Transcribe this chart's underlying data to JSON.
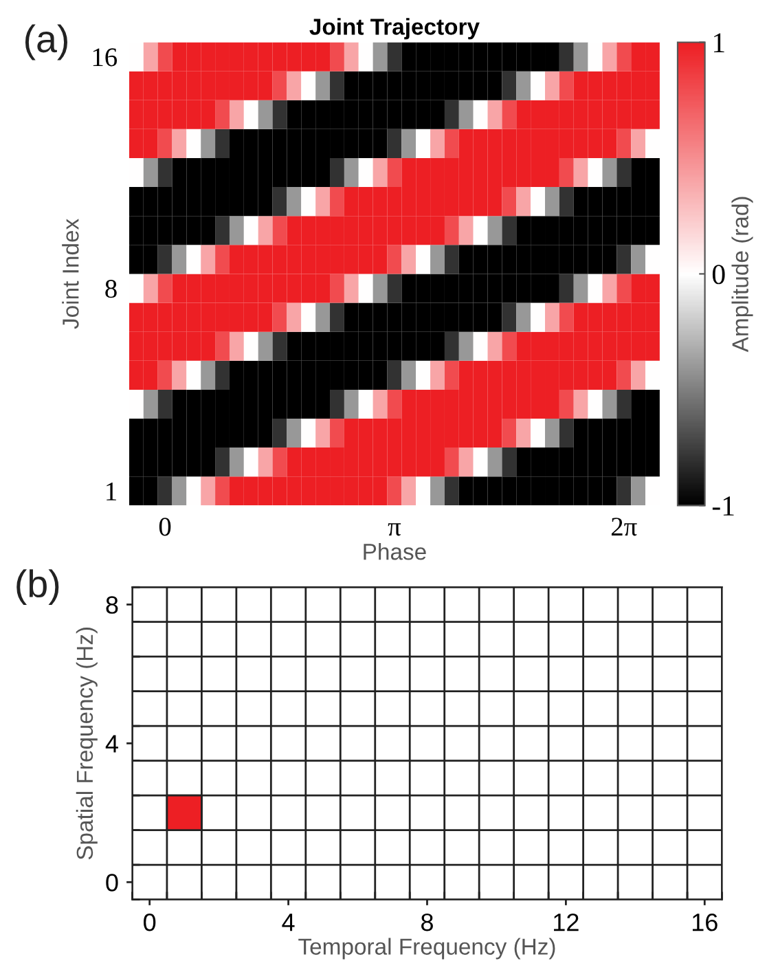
{
  "chart_data": [
    {
      "type": "heatmap",
      "title": "Joint Trajectory",
      "xlabel": "Phase",
      "ylabel": "Joint Index",
      "clabel": "Amplitude (rad)",
      "annotations": [
        "(a)"
      ],
      "categories": [
        null,
        null,
        "0",
        null,
        null,
        null,
        null,
        null,
        null,
        null,
        null,
        null,
        null,
        null,
        null,
        null,
        null,
        null,
        "π",
        null,
        null,
        null,
        null,
        null,
        null,
        null,
        null,
        null,
        null,
        null,
        null,
        null,
        null,
        null,
        "2π",
        null,
        null
      ],
      "y_categories": [
        "16",
        null,
        null,
        null,
        null,
        null,
        null,
        null,
        "8",
        null,
        null,
        null,
        null,
        null,
        null,
        "1"
      ],
      "clim": [
        -1,
        1
      ],
      "cticks": [
        {
          "value": -1,
          "label": "-1"
        },
        0,
        1
      ],
      "cells": [
        [
          0,
          0.4,
          0.8,
          1,
          1,
          1,
          1,
          1,
          1,
          1,
          1,
          1,
          1,
          1,
          0.8,
          0.4,
          0,
          -0.4,
          -0.8,
          -1,
          -1,
          -1,
          -1,
          -1,
          -1,
          -1,
          -1,
          -1,
          -1,
          -1,
          -0.8,
          -0.4,
          0,
          0.4,
          0.8,
          1,
          1
        ],
        [
          1,
          1,
          1,
          1,
          1,
          1,
          1,
          1,
          1,
          1,
          0.8,
          0.4,
          0,
          -0.4,
          -0.8,
          -1,
          -1,
          -1,
          -1,
          -1,
          -1,
          -1,
          -1,
          -1,
          -1,
          -1,
          -0.8,
          -0.4,
          0,
          0.4,
          0.8,
          1,
          1,
          1,
          1,
          1,
          1
        ],
        [
          1,
          1,
          1,
          1,
          1,
          1,
          0.8,
          0.4,
          0,
          -0.4,
          -0.8,
          -1,
          -1,
          -1,
          -1,
          -1,
          -1,
          -1,
          -1,
          -1,
          -1,
          -1,
          -0.8,
          -0.4,
          0,
          0.4,
          0.8,
          1,
          1,
          1,
          1,
          1,
          1,
          1,
          1,
          1,
          1
        ],
        [
          1,
          1,
          0.8,
          0.4,
          0,
          -0.4,
          -0.8,
          -1,
          -1,
          -1,
          -1,
          -1,
          -1,
          -1,
          -1,
          -1,
          -1,
          -1,
          -0.8,
          -0.4,
          0,
          0.4,
          0.8,
          1,
          1,
          1,
          1,
          1,
          1,
          1,
          1,
          1,
          1,
          1,
          0.8,
          0.4,
          0
        ],
        [
          0,
          -0.4,
          -0.8,
          -1,
          -1,
          -1,
          -1,
          -1,
          -1,
          -1,
          -1,
          -1,
          -1,
          -1,
          -0.8,
          -0.4,
          0,
          0.4,
          0.8,
          1,
          1,
          1,
          1,
          1,
          1,
          1,
          1,
          1,
          1,
          1,
          0.8,
          0.4,
          0,
          -0.4,
          -0.8,
          -1,
          -1
        ],
        [
          -1,
          -1,
          -1,
          -1,
          -1,
          -1,
          -1,
          -1,
          -1,
          -1,
          -0.8,
          -0.4,
          0,
          0.4,
          0.8,
          1,
          1,
          1,
          1,
          1,
          1,
          1,
          1,
          1,
          1,
          1,
          0.8,
          0.4,
          0,
          -0.4,
          -0.8,
          -1,
          -1,
          -1,
          -1,
          -1,
          -1
        ],
        [
          -1,
          -1,
          -1,
          -1,
          -1,
          -1,
          -0.8,
          -0.4,
          0,
          0.4,
          0.8,
          1,
          1,
          1,
          1,
          1,
          1,
          1,
          1,
          1,
          1,
          1,
          0.8,
          0.4,
          0,
          -0.4,
          -0.8,
          -1,
          -1,
          -1,
          -1,
          -1,
          -1,
          -1,
          -1,
          -1,
          -1
        ],
        [
          -1,
          -1,
          -0.8,
          -0.4,
          0,
          0.4,
          0.8,
          1,
          1,
          1,
          1,
          1,
          1,
          1,
          1,
          1,
          1,
          1,
          0.8,
          0.4,
          0,
          -0.4,
          -0.8,
          -1,
          -1,
          -1,
          -1,
          -1,
          -1,
          -1,
          -1,
          -1,
          -1,
          -1,
          -0.8,
          -0.4,
          0
        ],
        [
          0,
          0.4,
          0.8,
          1,
          1,
          1,
          1,
          1,
          1,
          1,
          1,
          1,
          1,
          1,
          0.8,
          0.4,
          0,
          -0.4,
          -0.8,
          -1,
          -1,
          -1,
          -1,
          -1,
          -1,
          -1,
          -1,
          -1,
          -1,
          -1,
          -0.8,
          -0.4,
          0,
          0.4,
          0.8,
          1,
          1
        ],
        [
          1,
          1,
          1,
          1,
          1,
          1,
          1,
          1,
          1,
          1,
          0.8,
          0.4,
          0,
          -0.4,
          -0.8,
          -1,
          -1,
          -1,
          -1,
          -1,
          -1,
          -1,
          -1,
          -1,
          -1,
          -1,
          -0.8,
          -0.4,
          0,
          0.4,
          0.8,
          1,
          1,
          1,
          1,
          1,
          1
        ],
        [
          1,
          1,
          1,
          1,
          1,
          1,
          0.8,
          0.4,
          0,
          -0.4,
          -0.8,
          -1,
          -1,
          -1,
          -1,
          -1,
          -1,
          -1,
          -1,
          -1,
          -1,
          -1,
          -0.8,
          -0.4,
          0,
          0.4,
          0.8,
          1,
          1,
          1,
          1,
          1,
          1,
          1,
          1,
          1,
          1
        ],
        [
          1,
          1,
          0.8,
          0.4,
          0,
          -0.4,
          -0.8,
          -1,
          -1,
          -1,
          -1,
          -1,
          -1,
          -1,
          -1,
          -1,
          -1,
          -1,
          -0.8,
          -0.4,
          0,
          0.4,
          0.8,
          1,
          1,
          1,
          1,
          1,
          1,
          1,
          1,
          1,
          1,
          1,
          0.8,
          0.4,
          0
        ],
        [
          0,
          -0.4,
          -0.8,
          -1,
          -1,
          -1,
          -1,
          -1,
          -1,
          -1,
          -1,
          -1,
          -1,
          -1,
          -0.8,
          -0.4,
          0,
          0.4,
          0.8,
          1,
          1,
          1,
          1,
          1,
          1,
          1,
          1,
          1,
          1,
          1,
          0.8,
          0.4,
          0,
          -0.4,
          -0.8,
          -1,
          -1
        ],
        [
          -1,
          -1,
          -1,
          -1,
          -1,
          -1,
          -1,
          -1,
          -1,
          -1,
          -0.8,
          -0.4,
          0,
          0.4,
          0.8,
          1,
          1,
          1,
          1,
          1,
          1,
          1,
          1,
          1,
          1,
          1,
          0.8,
          0.4,
          0,
          -0.4,
          -0.8,
          -1,
          -1,
          -1,
          -1,
          -1,
          -1
        ],
        [
          -1,
          -1,
          -1,
          -1,
          -1,
          -1,
          -0.8,
          -0.4,
          0,
          0.4,
          0.8,
          1,
          1,
          1,
          1,
          1,
          1,
          1,
          1,
          1,
          1,
          1,
          0.8,
          0.4,
          0,
          -0.4,
          -0.8,
          -1,
          -1,
          -1,
          -1,
          -1,
          -1,
          -1,
          -1,
          -1,
          -1
        ],
        [
          -1,
          -1,
          -0.8,
          -0.4,
          0,
          0.4,
          0.8,
          1,
          1,
          1,
          1,
          1,
          1,
          1,
          1,
          1,
          1,
          1,
          0.8,
          0.4,
          0,
          -0.4,
          -0.8,
          -1,
          -1,
          -1,
          -1,
          -1,
          -1,
          -1,
          -1,
          -1,
          -1,
          -1,
          -0.8,
          -0.4,
          0
        ]
      ]
    },
    {
      "type": "scatter",
      "xlabel": "Temporal Frequency (Hz)",
      "ylabel": "Spatial Frequency (Hz)",
      "annotations": [
        "(b)"
      ],
      "x": [
        1
      ],
      "values": [
        2
      ],
      "color": "#ed1f24",
      "marker": "square",
      "grid": true,
      "xlim": [
        -0.5,
        16.5
      ],
      "ylim": [
        -0.5,
        8.5
      ],
      "xticks": [
        {
          "value": -0.5,
          "label": null
        },
        0,
        {
          "value": 0.5,
          "label": null
        },
        {
          "value": 1.5,
          "label": null
        },
        {
          "value": 2.5,
          "label": null
        },
        {
          "value": 3.5,
          "label": null
        },
        4,
        {
          "value": 4.5,
          "label": null
        },
        {
          "value": 5.5,
          "label": null
        },
        {
          "value": 6.5,
          "label": null
        },
        {
          "value": 7.5,
          "label": null
        },
        8,
        {
          "value": 8.5,
          "label": null
        },
        {
          "value": 9.5,
          "label": null
        },
        {
          "value": 10.5,
          "label": null
        },
        {
          "value": 11.5,
          "label": null
        },
        12,
        {
          "value": 12.5,
          "label": null
        },
        {
          "value": 13.5,
          "label": null
        },
        {
          "value": 14.5,
          "label": null
        },
        {
          "value": 15.5,
          "label": null
        },
        16,
        {
          "value": 16.5,
          "label": null
        }
      ],
      "yticks": [
        {
          "value": -0.5,
          "label": null
        },
        0,
        {
          "value": 0.5,
          "label": null
        },
        {
          "value": 1.5,
          "label": null
        },
        {
          "value": 2.5,
          "label": null
        },
        {
          "value": 3.5,
          "label": null
        },
        4,
        {
          "value": 4.5,
          "label": null
        },
        {
          "value": 5.5,
          "label": null
        },
        {
          "value": 6.5,
          "label": null
        },
        {
          "value": 7.5,
          "label": null
        },
        8,
        {
          "value": 8.5,
          "label": null
        }
      ]
    }
  ]
}
